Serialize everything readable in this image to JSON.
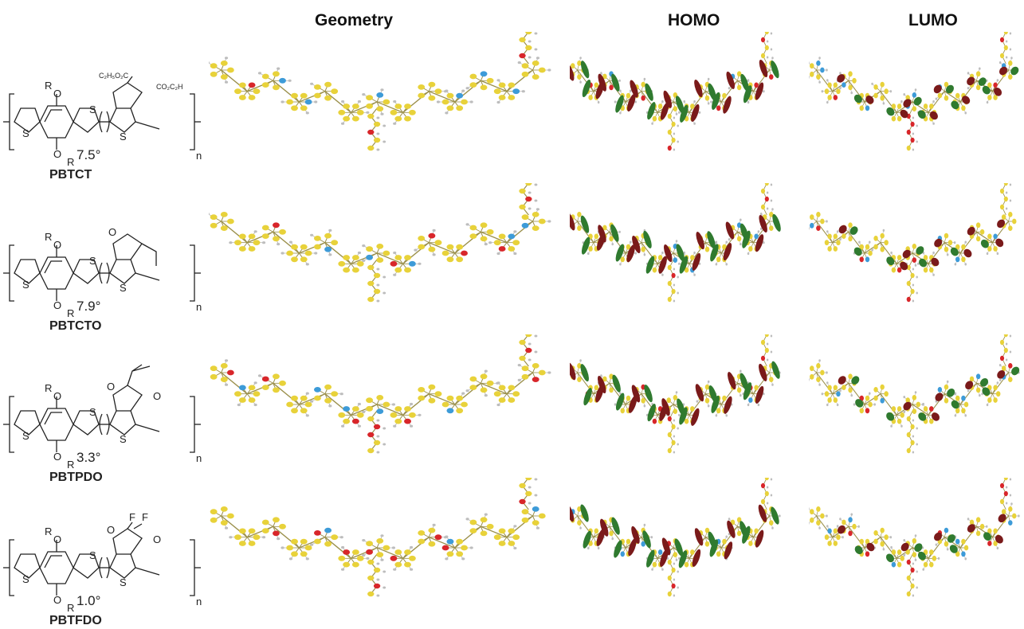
{
  "headers": {
    "geometry": "Geometry",
    "homo": "HOMO",
    "lumo": "LUMO"
  },
  "polymers": [
    {
      "name": "PBTCT",
      "angle": "7.5°",
      "acceptor": "ester",
      "labels": {
        "R_top": "R",
        "R_bottom": "R",
        "O_top": "O",
        "O_bottom": "O",
        "S1": "S",
        "S2": "S",
        "S3": "S",
        "n": "n",
        "sub1": "C₂H₅O₂C",
        "sub2": "CO₂C₂H"
      }
    },
    {
      "name": "PBTCTO",
      "angle": "7.9°",
      "acceptor": "ketone",
      "labels": {
        "R_top": "R",
        "R_bottom": "R",
        "O_top": "O",
        "O_bottom": "O",
        "S1": "S",
        "S2": "S",
        "S3": "S",
        "n": "n",
        "ox1": "O"
      }
    },
    {
      "name": "PBTPDO",
      "angle": "3.3°",
      "acceptor": "dione-isopropylidene",
      "labels": {
        "R_top": "R",
        "R_bottom": "R",
        "O_top": "O",
        "O_bottom": "O",
        "S1": "S",
        "S2": "S",
        "S3": "S",
        "n": "n",
        "ox1": "O",
        "ox2": "O"
      }
    },
    {
      "name": "PBTFDO",
      "angle": "1.0°",
      "acceptor": "dione-difluoro",
      "labels": {
        "R_top": "R",
        "R_bottom": "R",
        "O_top": "O",
        "O_bottom": "O",
        "S1": "S",
        "S2": "S",
        "S3": "S",
        "n": "n",
        "ox1": "O",
        "ox2": "O",
        "F1": "F",
        "F2": "F"
      }
    }
  ],
  "colors": {
    "carbon": "#e8d23a",
    "sulfur_blue": "#3d9bd8",
    "oxygen": "#d8262a",
    "hydrogen": "#bdbdbd",
    "fluorine": "#9bd3e8",
    "iodine_purple": "#9b4fc7",
    "orbital_pos": "#2f7a2f",
    "orbital_neg": "#7a1a1a",
    "bond": "#9a8f4a"
  }
}
